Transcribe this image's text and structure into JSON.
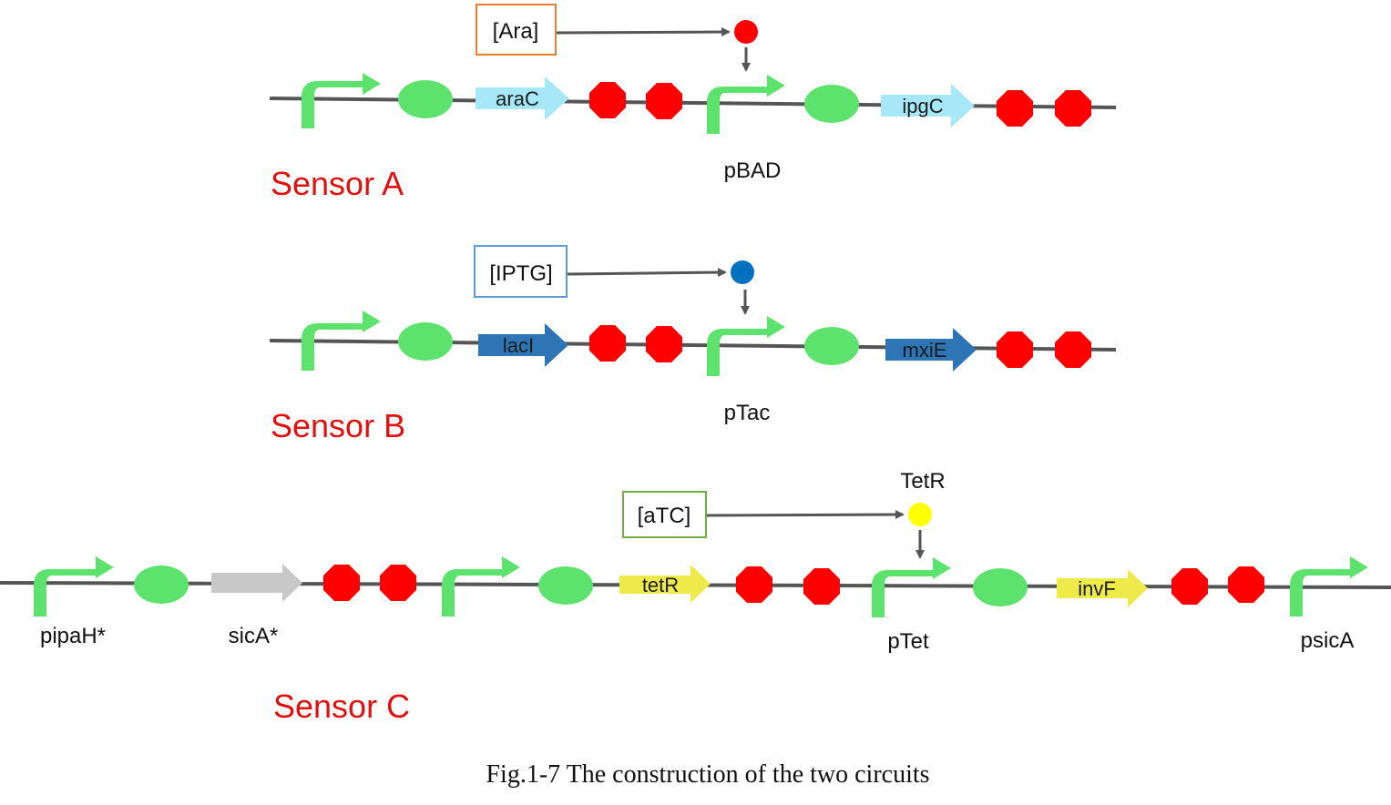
{
  "colors": {
    "dna_line": "#555555",
    "promoter": "#5de36d",
    "rbs": "#5de36d",
    "terminator": "#ff0000",
    "sensor_label": "#e01010",
    "araC_gene": "#a6e8f8",
    "lacI_gene": "#2e75b6",
    "tetR_gene": "#eeea4a",
    "sicA_gene": "#c8c8c8",
    "ara_box_border": "#ed7d31",
    "iptg_box_border": "#5b9bd5",
    "atc_box_border": "#70ad47",
    "ara_molecule": "#ff0000",
    "iptg_molecule": "#0070c0",
    "tetR_molecule": "#ffff00"
  },
  "sensor_a": {
    "title": "Sensor A",
    "inducer": "[Ara]",
    "promoter_label": "pBAD",
    "gene1": "araC",
    "gene2": "ipgC"
  },
  "sensor_b": {
    "title": "Sensor B",
    "inducer": "[IPTG]",
    "promoter_label": "pTac",
    "gene1": "lacI",
    "gene2": "mxiE"
  },
  "sensor_c": {
    "title": "Sensor C",
    "inducer": "[aTC]",
    "molecule_label": "TetR",
    "promoter1_label": "pipaH*",
    "gene_sica": "sicA*",
    "gene_tetr": "tetR",
    "promoter_tet_label": "pTet",
    "gene_invf": "invF",
    "promoter_end_label": "psicA"
  },
  "caption": "Fig.1-7 The construction of the two circuits"
}
